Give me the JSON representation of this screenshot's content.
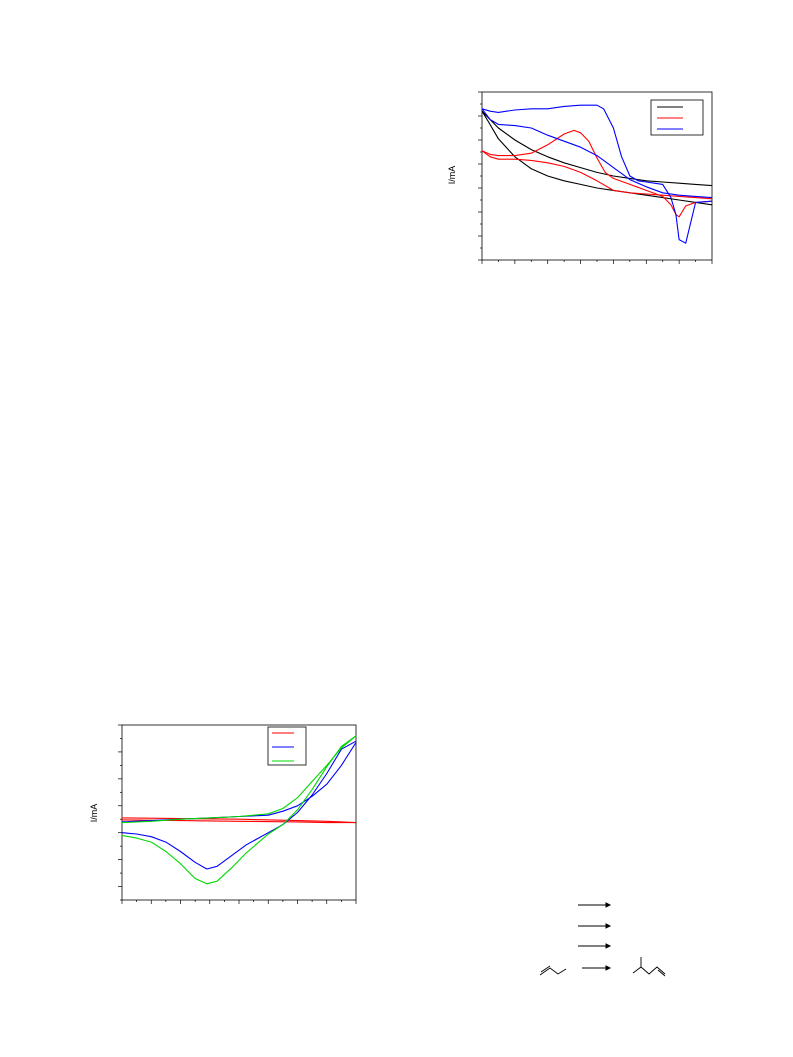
{
  "chart_data": [
    {
      "type": "line",
      "title": "",
      "xlabel": "",
      "ylabel": "I/mA",
      "xlim": [
        0,
        14
      ],
      "ylim": [
        0,
        14
      ],
      "grid": false,
      "legend": "top-right",
      "series": [
        {
          "color": "#000000",
          "x": [
            0,
            0.4,
            1,
            2,
            3,
            4,
            5,
            6,
            7,
            8,
            9,
            10,
            11,
            12,
            13,
            14
          ],
          "y": [
            12.4,
            11.5,
            10.1,
            8.6,
            7.6,
            7.0,
            6.6,
            6.3,
            6.0,
            5.8,
            5.6,
            5.4,
            5.2,
            5.0,
            4.8,
            4.6
          ]
        },
        {
          "color": "#000000",
          "x": [
            0,
            0.5,
            1,
            2,
            3,
            4,
            5,
            6,
            7,
            8,
            9,
            10,
            11,
            12,
            13,
            14
          ],
          "y": [
            12.4,
            11.7,
            11.0,
            10.0,
            9.2,
            8.6,
            8.1,
            7.7,
            7.3,
            7.0,
            6.8,
            6.6,
            6.5,
            6.4,
            6.3,
            6.2
          ]
        },
        {
          "color": "#ff0000",
          "x": [
            0,
            0.5,
            1,
            2,
            3,
            4,
            5,
            5.6,
            6,
            6.5,
            7,
            7.5,
            8,
            9,
            10,
            11,
            11.5,
            11.8,
            12,
            12.4,
            13,
            14
          ],
          "y": [
            9.1,
            8.8,
            8.7,
            8.7,
            8.9,
            9.6,
            10.5,
            10.8,
            10.6,
            9.9,
            8.5,
            7.3,
            6.8,
            6.3,
            5.8,
            5.3,
            4.6,
            3.8,
            3.6,
            4.5,
            4.8,
            4.9
          ]
        },
        {
          "color": "#ff0000",
          "x": [
            0,
            0.5,
            1,
            2,
            3,
            4,
            5,
            6,
            7,
            8,
            9,
            10,
            11,
            12,
            13,
            14
          ],
          "y": [
            9.1,
            8.6,
            8.4,
            8.4,
            8.3,
            8.1,
            7.8,
            7.3,
            6.6,
            5.8,
            5.6,
            5.5,
            5.4,
            5.3,
            5.2,
            5.1
          ]
        },
        {
          "color": "#0000ff",
          "x": [
            0,
            0.5,
            1,
            2,
            3,
            4,
            5,
            6,
            7,
            7.4,
            8,
            8.5,
            9,
            9.5,
            10,
            10.5,
            11,
            11.5,
            11.8,
            12,
            12.4,
            13,
            14
          ],
          "y": [
            12.6,
            12.4,
            12.3,
            12.5,
            12.6,
            12.6,
            12.8,
            12.9,
            12.9,
            12.6,
            11.0,
            8.6,
            7.0,
            6.6,
            6.5,
            6.4,
            6.3,
            5.2,
            3.8,
            1.7,
            1.4,
            4.8,
            4.9
          ]
        },
        {
          "color": "#0000ff",
          "x": [
            0,
            0.5,
            1,
            2,
            3,
            4,
            5,
            6,
            7,
            8,
            9,
            10,
            11,
            12,
            13,
            14
          ],
          "y": [
            12.6,
            11.7,
            11.3,
            11.2,
            11.0,
            10.4,
            9.9,
            9.4,
            8.7,
            7.7,
            6.7,
            6.1,
            5.6,
            5.4,
            5.3,
            5.2
          ]
        }
      ]
    },
    {
      "type": "line",
      "title": "",
      "xlabel": "",
      "ylabel": "I/mA",
      "xlim": [
        0,
        16
      ],
      "ylim": [
        0,
        13
      ],
      "grid": false,
      "legend": "top-right",
      "series": [
        {
          "color": "#ff0000",
          "x": [
            0,
            4,
            8,
            12,
            14,
            16
          ],
          "y": [
            6.1,
            6.05,
            6.0,
            5.9,
            5.85,
            5.75
          ]
        },
        {
          "color": "#ff0000",
          "x": [
            0,
            4,
            8,
            12,
            14,
            16
          ],
          "y": [
            5.95,
            5.9,
            5.85,
            5.8,
            5.75,
            5.75
          ]
        },
        {
          "color": "#0000ff",
          "x": [
            0,
            1,
            2,
            3,
            4,
            5,
            5.8,
            6.5,
            7.5,
            8.5,
            10,
            11,
            12,
            13,
            14,
            15,
            16
          ],
          "y": [
            5.0,
            4.9,
            4.7,
            4.3,
            3.6,
            2.8,
            2.3,
            2.5,
            3.3,
            4.1,
            5.0,
            5.6,
            6.5,
            7.8,
            9.4,
            11.2,
            11.8
          ]
        },
        {
          "color": "#0000ff",
          "x": [
            0,
            2,
            4,
            6,
            8,
            10,
            11,
            12,
            13,
            14,
            15,
            16
          ],
          "y": [
            5.8,
            5.9,
            6.0,
            6.1,
            6.2,
            6.3,
            6.6,
            7.0,
            7.7,
            8.6,
            10.0,
            11.7
          ]
        },
        {
          "color": "#00d800",
          "x": [
            0,
            1,
            2,
            3,
            4,
            5,
            5.8,
            6.5,
            7.5,
            8.5,
            10,
            11,
            12,
            13,
            14,
            15,
            16
          ],
          "y": [
            4.8,
            4.6,
            4.3,
            3.6,
            2.7,
            1.6,
            1.2,
            1.4,
            2.4,
            3.5,
            4.9,
            5.6,
            6.7,
            8.2,
            9.9,
            11.4,
            12.2
          ]
        },
        {
          "color": "#00d800",
          "x": [
            0,
            2,
            4,
            6,
            8,
            10,
            11,
            12,
            13,
            14,
            15,
            16
          ],
          "y": [
            5.75,
            5.85,
            6.0,
            6.1,
            6.2,
            6.4,
            6.8,
            7.6,
            8.8,
            10.0,
            11.3,
            12.2
          ]
        }
      ]
    }
  ]
}
